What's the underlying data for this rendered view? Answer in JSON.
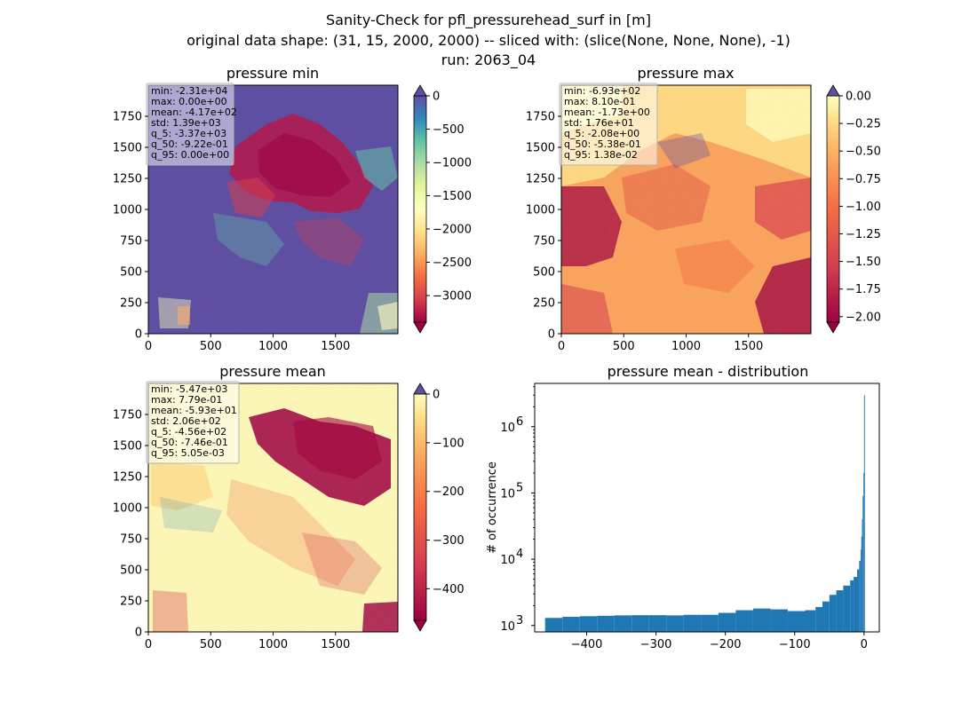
{
  "figure": {
    "title_line1": "Sanity-Check for pfl_pressurehead_surf in [m]",
    "title_line2": "original data shape: (31, 15, 2000, 2000) -- sliced with: (slice(None, None, None), -1)",
    "title_line3": "run: 2063_04"
  },
  "chart_data": [
    {
      "type": "heatmap",
      "title": "pressure min",
      "colormap": "Spectral",
      "xlim": [
        0,
        2000
      ],
      "ylim": [
        0,
        2000
      ],
      "xticks": [
        0,
        500,
        1000,
        1500
      ],
      "yticks": [
        0,
        250,
        500,
        750,
        1000,
        1250,
        1500,
        1750
      ],
      "colorbar": {
        "min": -3400,
        "max": 0,
        "ticks": [
          0,
          -500,
          -1000,
          -1500,
          -2000,
          -2500,
          -3000
        ],
        "extend": "both"
      },
      "stats": [
        "min: -2.31e+04",
        "max: 0.00e+00",
        "mean: -4.17e+02",
        "std: 1.39e+03",
        "q_5: -3.37e+03",
        "q_50: -9.22e-01",
        "q_95: 0.00e+00"
      ]
    },
    {
      "type": "heatmap",
      "title": "pressure max",
      "colormap": "Spectral",
      "xlim": [
        0,
        2000
      ],
      "ylim": [
        0,
        2000
      ],
      "xticks": [
        0,
        500,
        1000,
        1500
      ],
      "yticks": [
        0,
        250,
        500,
        750,
        1000,
        1250,
        1500,
        1750
      ],
      "colorbar": {
        "min": -2.05,
        "max": 0.0,
        "ticks": [
          "0.00",
          "−0.25",
          "−0.50",
          "−0.75",
          "−1.00",
          "−1.25",
          "−1.50",
          "−1.75",
          "−2.00"
        ],
        "extend": "both"
      },
      "stats": [
        "min: -6.93e+02",
        "max: 8.10e-01",
        "mean: -1.73e+00",
        "std: 1.76e+01",
        "q_5: -2.08e+00",
        "q_50: -5.38e-01",
        "q_95: 1.38e-02"
      ]
    },
    {
      "type": "heatmap",
      "title": "pressure mean",
      "colormap": "Spectral",
      "xlim": [
        0,
        2000
      ],
      "ylim": [
        0,
        2000
      ],
      "xticks": [
        0,
        500,
        1000,
        1500
      ],
      "yticks": [
        0,
        250,
        500,
        750,
        1000,
        1250,
        1500,
        1750
      ],
      "colorbar": {
        "min": -465,
        "max": 0,
        "ticks": [
          0,
          -100,
          -200,
          -300,
          -400
        ],
        "extend": "both"
      },
      "stats": [
        "min: -5.47e+03",
        "max: 7.79e-01",
        "mean: -5.93e+01",
        "std: 2.06e+02",
        "q_5: -4.56e+02",
        "q_50: -7.46e-01",
        "q_95: 5.05e-03"
      ]
    },
    {
      "type": "bar",
      "title": "pressure mean - distribution",
      "ylabel": "# of occurrence",
      "yscale": "log",
      "ylim": [
        800,
        4500000
      ],
      "xlim": [
        -475,
        22
      ],
      "xticks": [
        -400,
        -300,
        -200,
        -100,
        0
      ],
      "color": "#1f77b4",
      "bins_x": [
        -460,
        -435,
        -410,
        -385,
        -360,
        -335,
        -310,
        -285,
        -260,
        -235,
        -210,
        -185,
        -160,
        -135,
        -110,
        -85,
        -70,
        -60,
        -50,
        -40,
        -30,
        -20,
        -15,
        -10,
        -7,
        -5,
        -4,
        -3,
        -2,
        -1,
        0
      ],
      "counts": [
        1300,
        1350,
        1380,
        1400,
        1420,
        1430,
        1430,
        1420,
        1450,
        1450,
        1550,
        1700,
        1800,
        1750,
        1650,
        1700,
        1900,
        2300,
        2900,
        3400,
        4000,
        4800,
        5400,
        7000,
        9500,
        14000,
        22000,
        40000,
        90000,
        200000,
        3000000
      ],
      "yticks_exp": [
        3,
        4,
        5,
        6
      ]
    }
  ]
}
